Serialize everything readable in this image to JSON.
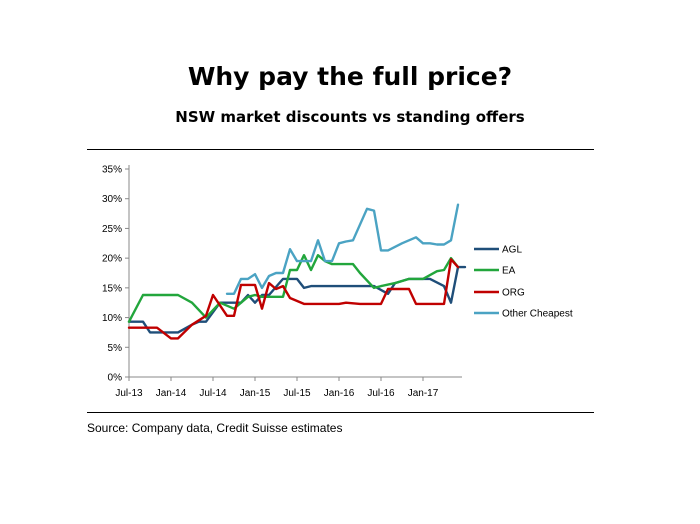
{
  "title": "Why pay the full price?",
  "subtitle": "NSW market discounts vs standing offers",
  "source": "Source: Company data, Credit Suisse estimates",
  "chart_data": {
    "type": "line",
    "x_tick_labels": [
      "Jul-13",
      "Jan-14",
      "Jul-14",
      "Jan-15",
      "Jul-15",
      "Jan-16",
      "Jul-16",
      "Jan-17"
    ],
    "y_tick_labels": [
      "0%",
      "5%",
      "10%",
      "15%",
      "20%",
      "25%",
      "30%",
      "35%"
    ],
    "xlim": [
      0,
      47
    ],
    "ylim": [
      0,
      35
    ],
    "x_unit": "months since Jul-13",
    "y_unit": "%",
    "grid": false,
    "legend_position": "right",
    "series": [
      {
        "name": "AGL",
        "color": "#1f4e79",
        "points": [
          [
            0,
            9.3
          ],
          [
            2,
            9.3
          ],
          [
            3,
            7.5
          ],
          [
            4,
            7.5
          ],
          [
            6,
            7.5
          ],
          [
            7,
            7.5
          ],
          [
            9,
            8.8
          ],
          [
            10,
            9.3
          ],
          [
            11,
            9.3
          ],
          [
            13,
            12.5
          ],
          [
            16,
            12.5
          ],
          [
            17,
            13.8
          ],
          [
            18,
            12.5
          ],
          [
            19,
            13.8
          ],
          [
            20,
            13.8
          ],
          [
            22,
            16.5
          ],
          [
            24,
            16.5
          ],
          [
            25,
            15.0
          ],
          [
            26,
            15.3
          ],
          [
            29,
            15.3
          ],
          [
            33,
            15.3
          ],
          [
            35,
            15.3
          ],
          [
            37,
            14.0
          ],
          [
            38,
            15.8
          ],
          [
            40,
            16.5
          ],
          [
            43,
            16.5
          ],
          [
            45,
            15.3
          ],
          [
            46,
            12.5
          ],
          [
            47,
            18.5
          ],
          [
            48,
            18.5
          ]
        ]
      },
      {
        "name": "EA",
        "color": "#22a63c",
        "points": [
          [
            0,
            9.3
          ],
          [
            2,
            13.8
          ],
          [
            4,
            13.8
          ],
          [
            7,
            13.8
          ],
          [
            9,
            12.5
          ],
          [
            11,
            10.0
          ],
          [
            13,
            12.5
          ],
          [
            15,
            11.5
          ],
          [
            16,
            12.5
          ],
          [
            17,
            13.5
          ],
          [
            18,
            13.8
          ],
          [
            19,
            13.5
          ],
          [
            20,
            13.5
          ],
          [
            22,
            13.5
          ],
          [
            23,
            18.0
          ],
          [
            24,
            18.0
          ],
          [
            25,
            20.5
          ],
          [
            26,
            18.0
          ],
          [
            27,
            20.5
          ],
          [
            28,
            19.5
          ],
          [
            29,
            19.0
          ],
          [
            32,
            19.0
          ],
          [
            33,
            17.5
          ],
          [
            35,
            15.0
          ],
          [
            36,
            15.3
          ],
          [
            38,
            15.8
          ],
          [
            40,
            16.5
          ],
          [
            42,
            16.5
          ],
          [
            44,
            17.8
          ],
          [
            45,
            18.0
          ],
          [
            46,
            20.0
          ],
          [
            47,
            18.5
          ]
        ]
      },
      {
        "name": "ORG",
        "color": "#c00000",
        "points": [
          [
            0,
            8.3
          ],
          [
            4,
            8.3
          ],
          [
            6,
            6.5
          ],
          [
            7,
            6.5
          ],
          [
            9,
            8.8
          ],
          [
            11,
            10.3
          ],
          [
            12,
            13.8
          ],
          [
            14,
            10.3
          ],
          [
            15,
            10.3
          ],
          [
            16,
            15.5
          ],
          [
            18,
            15.5
          ],
          [
            19,
            11.5
          ],
          [
            20,
            15.8
          ],
          [
            21,
            14.8
          ],
          [
            22,
            15.3
          ],
          [
            23,
            13.3
          ],
          [
            25,
            12.3
          ],
          [
            27,
            12.3
          ],
          [
            30,
            12.3
          ],
          [
            31,
            12.5
          ],
          [
            33,
            12.3
          ],
          [
            35,
            12.3
          ],
          [
            36,
            12.3
          ],
          [
            37,
            14.8
          ],
          [
            38,
            14.8
          ],
          [
            40,
            14.8
          ],
          [
            41,
            12.3
          ],
          [
            44,
            12.3
          ],
          [
            45,
            12.3
          ],
          [
            46,
            19.8
          ],
          [
            47,
            18.5
          ]
        ]
      },
      {
        "name": "Other Cheapest",
        "color": "#4ba3c3",
        "points": [
          [
            14,
            14.0
          ],
          [
            15,
            14.0
          ],
          [
            16,
            16.5
          ],
          [
            17,
            16.5
          ],
          [
            18,
            17.3
          ],
          [
            19,
            15.0
          ],
          [
            20,
            17.0
          ],
          [
            21,
            17.5
          ],
          [
            22,
            17.5
          ],
          [
            23,
            21.5
          ],
          [
            24,
            19.5
          ],
          [
            25,
            19.5
          ],
          [
            26,
            19.5
          ],
          [
            27,
            23.0
          ],
          [
            28,
            19.5
          ],
          [
            29,
            19.5
          ],
          [
            30,
            22.5
          ],
          [
            31,
            22.8
          ],
          [
            32,
            23.0
          ],
          [
            34,
            28.3
          ],
          [
            35,
            28.0
          ],
          [
            36,
            21.3
          ],
          [
            37,
            21.3
          ],
          [
            39,
            22.5
          ],
          [
            40,
            23.0
          ],
          [
            41,
            23.5
          ],
          [
            42,
            22.5
          ],
          [
            43,
            22.5
          ],
          [
            44,
            22.3
          ],
          [
            45,
            22.3
          ],
          [
            46,
            23.0
          ],
          [
            47,
            29.0
          ]
        ]
      }
    ]
  }
}
